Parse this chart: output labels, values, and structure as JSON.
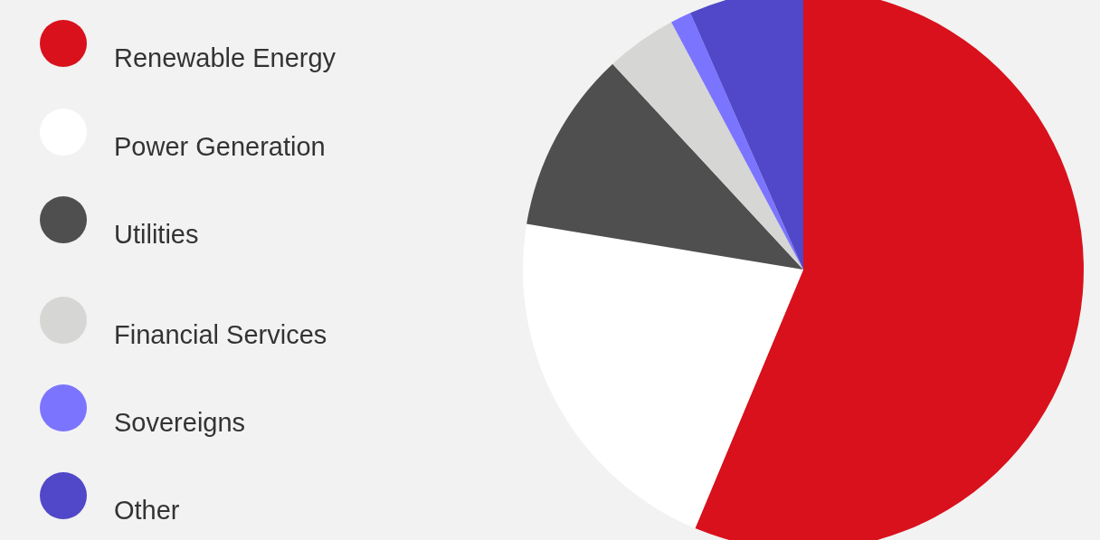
{
  "chart_data": {
    "type": "pie",
    "categories": [
      "Renewable Energy",
      "Power Generation",
      "Utilities",
      "Financial Services",
      "Sovereigns",
      "Other"
    ],
    "values": [
      56.3,
      21.3,
      10.5,
      4.1,
      1.2,
      6.6
    ],
    "colors": [
      "#d9111c",
      "#ffffff",
      "#4f4f4f",
      "#d6d6d4",
      "#7b74fe",
      "#5048c8"
    ],
    "legend": "left"
  }
}
